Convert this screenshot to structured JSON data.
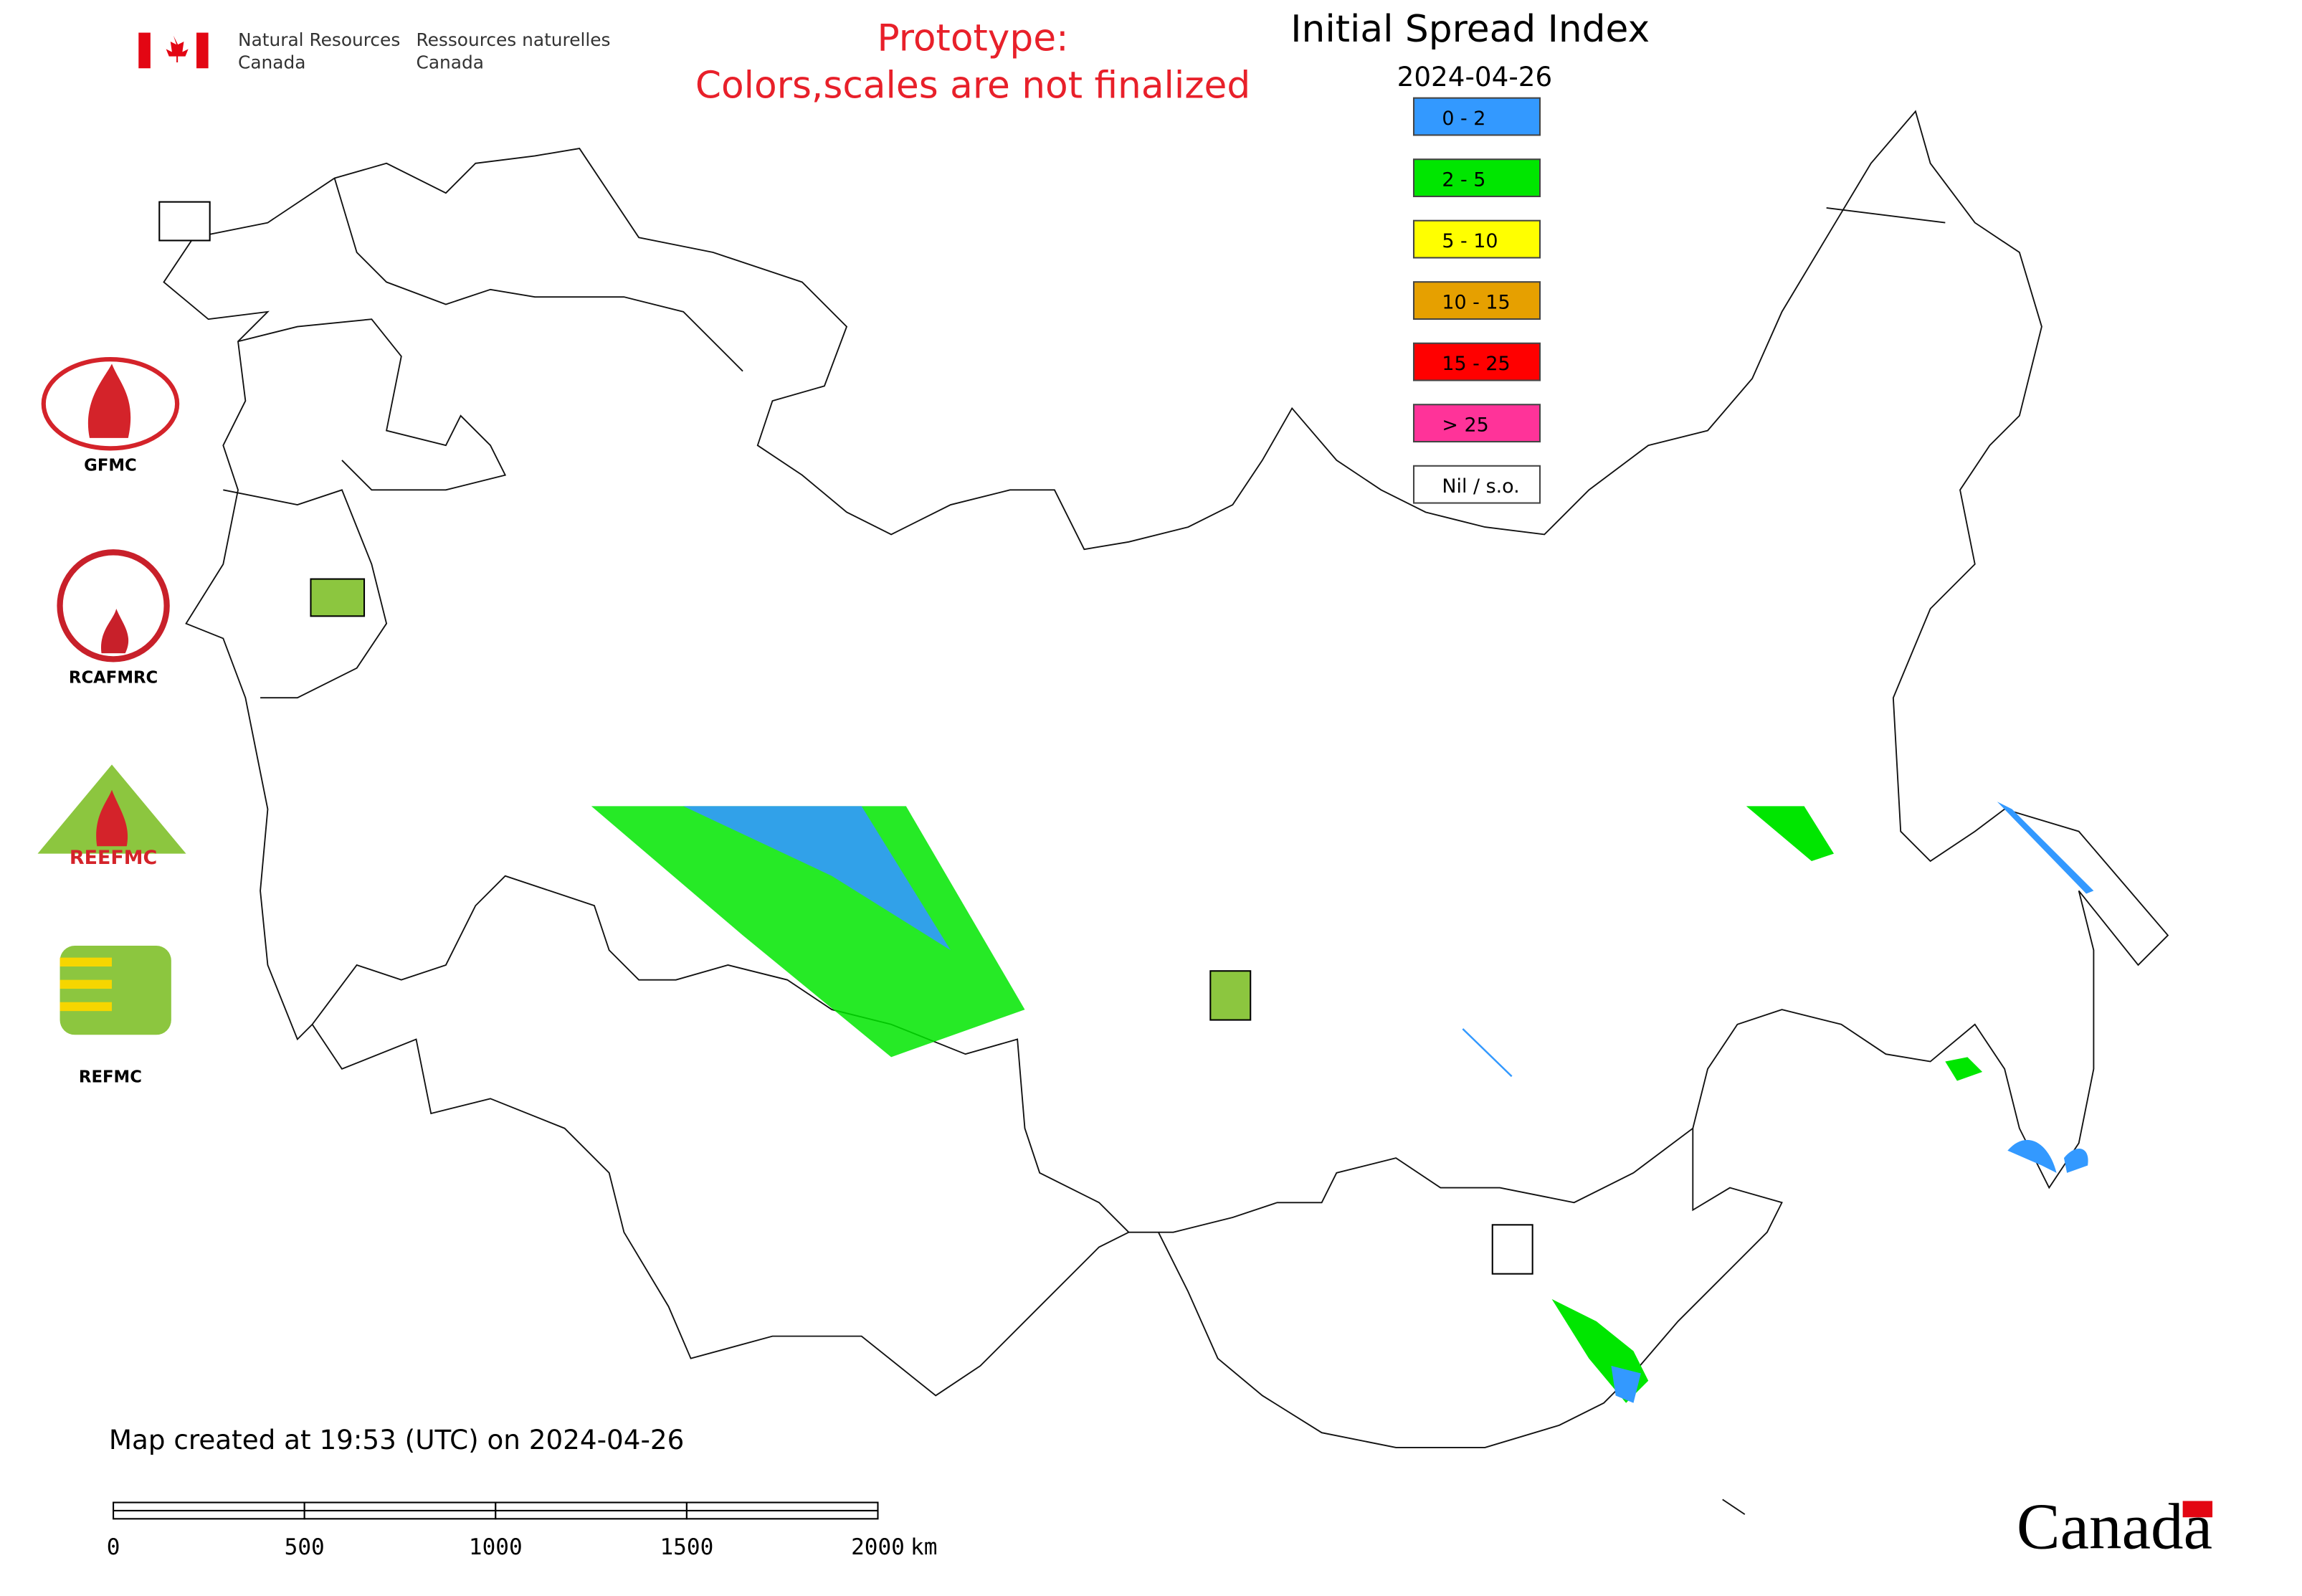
{
  "header": {
    "agency_en": [
      "Natural Resources",
      "Canada"
    ],
    "agency_fr": [
      "Ressources naturelles",
      "Canada"
    ],
    "notice": [
      "Prototype:",
      "Colors,scales are not finalized"
    ]
  },
  "map": {
    "title": "Initial Spread Index",
    "date": "2024-04-26",
    "legend": [
      {
        "label": "0 - 2",
        "color": "#3399ff"
      },
      {
        "label": "2 - 5",
        "color": "#00e600"
      },
      {
        "label": "5 - 10",
        "color": "#ffff00"
      },
      {
        "label": "10 - 15",
        "color": "#e6a000"
      },
      {
        "label": "15 - 25",
        "color": "#ff0000"
      },
      {
        "label": "> 25",
        "color": "#ff3399"
      },
      {
        "label": "Nil / s.o.",
        "color": "#ffffff"
      }
    ],
    "logos": [
      "GFMC",
      "RCAFMRC",
      "REEFMC",
      "REFMC"
    ],
    "footer": "Map created at 19:53 (UTC) on 2024-04-26",
    "scale_bar": {
      "ticks": [
        0,
        500,
        1000,
        1500,
        2000
      ],
      "unit": "km"
    }
  },
  "wordmark": "Canada"
}
